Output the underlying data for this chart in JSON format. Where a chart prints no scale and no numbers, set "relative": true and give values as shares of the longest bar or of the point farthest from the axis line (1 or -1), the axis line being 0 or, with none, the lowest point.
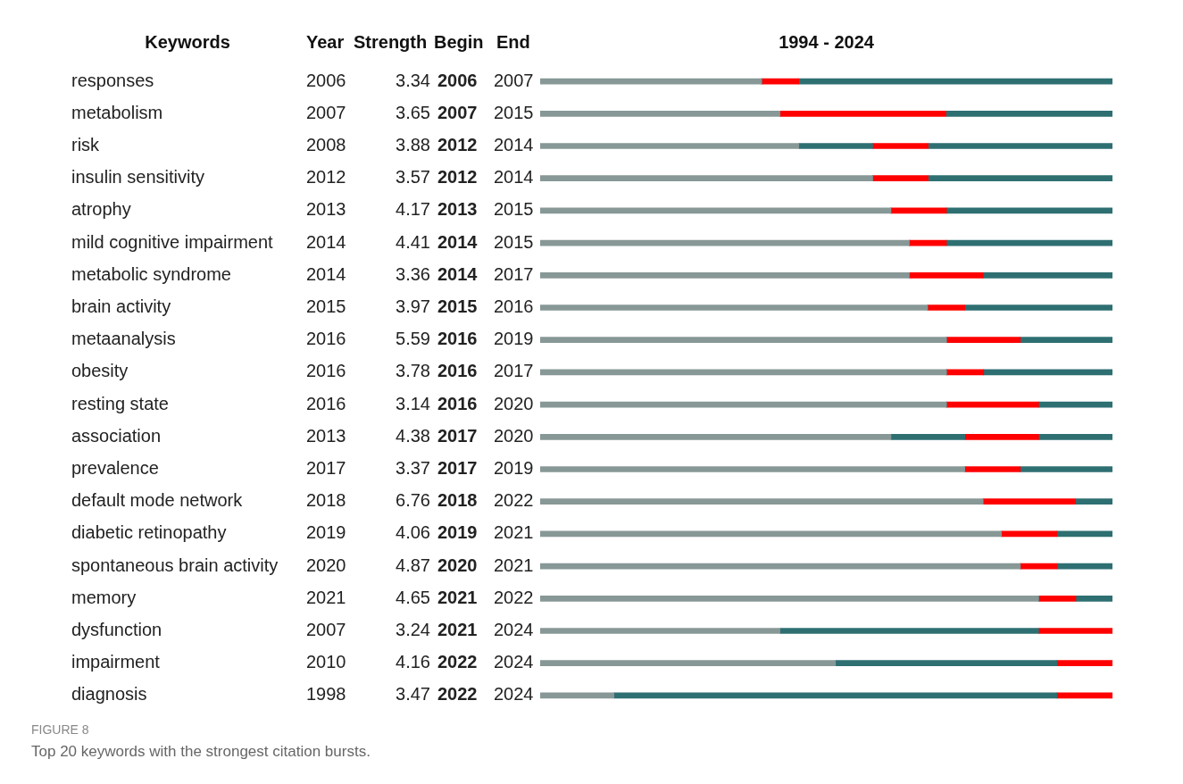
{
  "chart_data": {
    "type": "bar",
    "orientation": "horizontal",
    "stacked": true,
    "relative": true,
    "title": "1994 - 2024",
    "ylabel": "Keywords",
    "categories": [
      "responses",
      "metabolism",
      "risk",
      "insulin sensitivity",
      "atrophy",
      "mild cognitive impairment",
      "metabolic syndrome",
      "brain activity",
      "metaanalysis",
      "obesity",
      "resting state",
      "association",
      "prevalence",
      "default mode network",
      "diabetic retinopathy",
      "spontaneous brain activity",
      "memory",
      "dysfunction",
      "impairment",
      "diagnosis"
    ],
    "series": [
      {
        "color": "#879896",
        "values": [
          0.387,
          0.419,
          0.452,
          0.581,
          0.613,
          0.645,
          0.645,
          0.677,
          0.71,
          0.71,
          0.71,
          0.613,
          0.742,
          0.774,
          0.806,
          0.839,
          0.871,
          0.419,
          0.516,
          0.129
        ]
      },
      {
        "color": "#2e6f72",
        "values": [
          0,
          0,
          0.129,
          0,
          0,
          0,
          0,
          0,
          0,
          0,
          0,
          0.129,
          0,
          0,
          0,
          0,
          0,
          0.452,
          0.387,
          0.774
        ]
      },
      {
        "color": "#ff0000",
        "values": [
          0.065,
          0.29,
          0.097,
          0.097,
          0.097,
          0.065,
          0.129,
          0.065,
          0.129,
          0.065,
          0.161,
          0.129,
          0.097,
          0.161,
          0.097,
          0.065,
          0.065,
          0.129,
          0.097,
          0.097
        ]
      },
      {
        "color": "#2e6f72",
        "values": [
          0.548,
          0.291,
          0.322,
          0.322,
          0.29,
          0.29,
          0.226,
          0.258,
          0.161,
          0.225,
          0.129,
          0.129,
          0.161,
          0.065,
          0.097,
          0.096,
          0.064,
          0,
          0,
          0
        ]
      }
    ],
    "tick_labels": "y",
    "grid": false,
    "legend": false,
    "annotations": [
      "Year",
      "Strength",
      "Begin",
      "End",
      "2006",
      "3.34",
      "2006",
      "2007",
      "2007",
      "3.65",
      "2007",
      "2015",
      "2008",
      "3.88",
      "2012",
      "2014",
      "2012",
      "3.57",
      "2012",
      "2014",
      "2013",
      "4.17",
      "2013",
      "2015",
      "2014",
      "4.41",
      "2014",
      "2015",
      "2014",
      "3.36",
      "2014",
      "2017",
      "2015",
      "3.97",
      "2015",
      "2016",
      "2016",
      "5.59",
      "2016",
      "2019",
      "2016",
      "3.78",
      "2016",
      "2017",
      "2016",
      "3.14",
      "2016",
      "2020",
      "2013",
      "4.38",
      "2017",
      "2020",
      "2017",
      "3.37",
      "2017",
      "2019",
      "2018",
      "6.76",
      "2018",
      "2022",
      "2019",
      "4.06",
      "2019",
      "2021",
      "2020",
      "4.87",
      "2020",
      "2021",
      "2021",
      "4.65",
      "2021",
      "2022",
      "2007",
      "3.24",
      "2021",
      "2024",
      "2010",
      "4.16",
      "2022",
      "2024",
      "1998",
      "3.47",
      "2022",
      "2024",
      "FIGURE 8",
      "Top 20 keywords with the strongest citation bursts."
    ]
  }
}
